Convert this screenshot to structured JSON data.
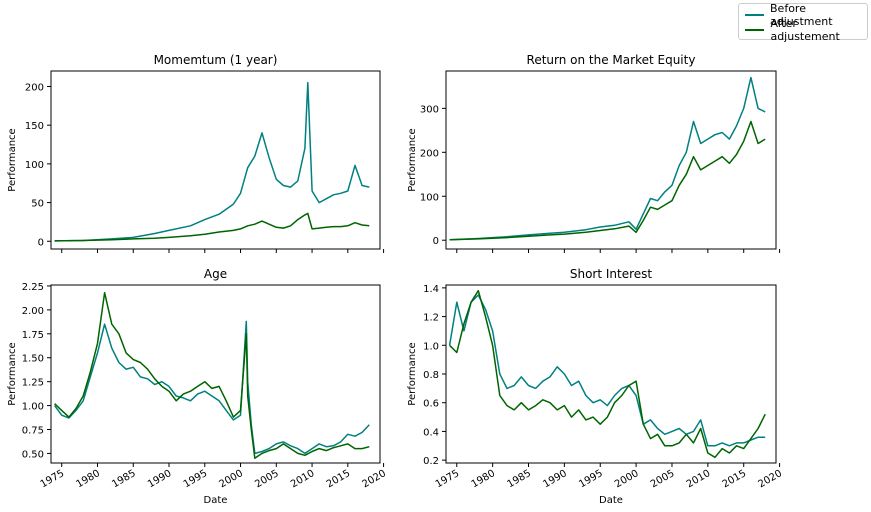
{
  "legend": {
    "before": "Before adjustment",
    "after": "After adjustement"
  },
  "colors": {
    "before": "#008080",
    "after": "#006400"
  },
  "chart_data": [
    {
      "type": "line",
      "title": "Momemtum (1 year)",
      "ylabel": "Performance",
      "xlabel": "",
      "xlim": [
        1973.5,
        2019.5
      ],
      "ylim": [
        -10,
        220
      ],
      "yticks": [
        0,
        50,
        100,
        150,
        200
      ],
      "ytick_labels": [
        "0",
        "50",
        "100",
        "150",
        "200"
      ],
      "xticks": [],
      "series": [
        {
          "name": "Before adjustment",
          "x": [
            1974,
            1978,
            1982,
            1985,
            1988,
            1990,
            1993,
            1995,
            1997,
            1999,
            2000,
            2001,
            2002,
            2003,
            2004,
            2005,
            2006,
            2007,
            2008,
            2009,
            2009.4,
            2010,
            2011,
            2012,
            2013,
            2014,
            2015,
            2016,
            2017,
            2018
          ],
          "y": [
            0.5,
            1,
            3,
            5,
            10,
            14,
            20,
            28,
            35,
            48,
            62,
            95,
            110,
            140,
            108,
            80,
            72,
            70,
            78,
            120,
            205,
            65,
            50,
            55,
            60,
            62,
            65,
            98,
            72,
            70
          ]
        },
        {
          "name": "After adjustement",
          "x": [
            1974,
            1978,
            1982,
            1985,
            1988,
            1990,
            1993,
            1995,
            1997,
            1999,
            2000,
            2001,
            2002,
            2003,
            2004,
            2005,
            2006,
            2007,
            2008,
            2009,
            2009.4,
            2010,
            2011,
            2012,
            2013,
            2014,
            2015,
            2016,
            2017,
            2018
          ],
          "y": [
            0.5,
            1,
            2,
            3,
            4,
            5,
            7,
            9,
            12,
            14,
            16,
            20,
            22,
            26,
            22,
            18,
            17,
            20,
            28,
            34,
            36,
            16,
            17,
            18,
            19,
            19,
            20,
            24,
            21,
            20
          ]
        }
      ]
    },
    {
      "type": "line",
      "title": "Return on the Market Equity",
      "ylabel": "Performance",
      "xlabel": "",
      "xlim": [
        1973.5,
        2019.5
      ],
      "ylim": [
        -20,
        385
      ],
      "yticks": [
        0,
        100,
        200,
        300
      ],
      "ytick_labels": [
        "0",
        "100",
        "200",
        "300"
      ],
      "xticks": [],
      "series": [
        {
          "name": "Before adjustment",
          "x": [
            1974,
            1978,
            1982,
            1985,
            1988,
            1990,
            1993,
            1995,
            1997,
            1999,
            2000,
            2001,
            2002,
            2003,
            2004,
            2005,
            2006,
            2007,
            2008,
            2009,
            2010,
            2011,
            2012,
            2013,
            2014,
            2015,
            2016,
            2017,
            2018
          ],
          "y": [
            1,
            4,
            8,
            12,
            16,
            18,
            24,
            30,
            34,
            42,
            25,
            60,
            95,
            90,
            110,
            125,
            170,
            200,
            270,
            220,
            230,
            240,
            245,
            230,
            260,
            300,
            370,
            300,
            292
          ]
        },
        {
          "name": "After adjustement",
          "x": [
            1974,
            1978,
            1982,
            1985,
            1988,
            1990,
            1993,
            1995,
            1997,
            1999,
            2000,
            2001,
            2002,
            2003,
            2004,
            2005,
            2006,
            2007,
            2008,
            2009,
            2010,
            2011,
            2012,
            2013,
            2014,
            2015,
            2016,
            2017,
            2018
          ],
          "y": [
            1,
            3,
            6,
            9,
            12,
            14,
            18,
            22,
            26,
            32,
            18,
            45,
            75,
            70,
            80,
            90,
            125,
            150,
            190,
            160,
            170,
            180,
            190,
            175,
            195,
            225,
            270,
            220,
            230
          ]
        }
      ]
    },
    {
      "type": "line",
      "title": "Age",
      "ylabel": "Performance",
      "xlabel": "Date",
      "xlim": [
        1973.5,
        2019.5
      ],
      "ylim": [
        0.4,
        2.26
      ],
      "yticks": [
        0.5,
        0.75,
        1.0,
        1.25,
        1.5,
        1.75,
        2.0,
        2.25
      ],
      "ytick_labels": [
        "0.50",
        "0.75",
        "1.00",
        "1.25",
        "1.50",
        "1.75",
        "2.00",
        "2.25"
      ],
      "xticks": [
        1975,
        1980,
        1985,
        1990,
        1995,
        2000,
        2005,
        2010,
        2015,
        2020
      ],
      "xtick_labels": [
        "1975",
        "1980",
        "1985",
        "1990",
        "1995",
        "2000",
        "2005",
        "2010",
        "2015",
        "2020"
      ],
      "series": [
        {
          "name": "Before adjustment",
          "x": [
            1974,
            1975,
            1976,
            1977,
            1978,
            1979,
            1980,
            1981,
            1982,
            1983,
            1984,
            1985,
            1986,
            1987,
            1988,
            1989,
            1990,
            1991,
            1992,
            1993,
            1994,
            1995,
            1996,
            1997,
            1998,
            1999,
            2000,
            2000.8,
            2001,
            2001.5,
            2002,
            2003,
            2004,
            2005,
            2006,
            2007,
            2008,
            2009,
            2010,
            2011,
            2012,
            2013,
            2014,
            2015,
            2016,
            2017,
            2018
          ],
          "y": [
            1.0,
            0.9,
            0.87,
            0.95,
            1.05,
            1.3,
            1.55,
            1.85,
            1.6,
            1.45,
            1.38,
            1.4,
            1.3,
            1.28,
            1.22,
            1.25,
            1.2,
            1.1,
            1.08,
            1.05,
            1.12,
            1.15,
            1.1,
            1.05,
            0.95,
            0.85,
            0.9,
            1.88,
            1.25,
            0.8,
            0.5,
            0.52,
            0.55,
            0.6,
            0.62,
            0.58,
            0.55,
            0.5,
            0.55,
            0.6,
            0.57,
            0.58,
            0.62,
            0.7,
            0.68,
            0.72,
            0.8
          ]
        },
        {
          "name": "After adjustement",
          "x": [
            1974,
            1975,
            1976,
            1977,
            1978,
            1979,
            1980,
            1981,
            1982,
            1983,
            1984,
            1985,
            1986,
            1987,
            1988,
            1989,
            1990,
            1991,
            1992,
            1993,
            1994,
            1995,
            1996,
            1997,
            1998,
            1999,
            2000,
            2000.8,
            2001,
            2001.5,
            2002,
            2003,
            2004,
            2005,
            2006,
            2007,
            2008,
            2009,
            2010,
            2011,
            2012,
            2013,
            2014,
            2015,
            2016,
            2017,
            2018
          ],
          "y": [
            1.02,
            0.95,
            0.88,
            0.97,
            1.1,
            1.35,
            1.65,
            2.18,
            1.85,
            1.75,
            1.55,
            1.48,
            1.45,
            1.38,
            1.28,
            1.2,
            1.15,
            1.05,
            1.12,
            1.15,
            1.2,
            1.25,
            1.18,
            1.2,
            1.05,
            0.88,
            0.95,
            1.75,
            1.1,
            0.75,
            0.45,
            0.5,
            0.53,
            0.55,
            0.6,
            0.55,
            0.5,
            0.48,
            0.52,
            0.55,
            0.53,
            0.56,
            0.58,
            0.6,
            0.55,
            0.55,
            0.57
          ]
        }
      ]
    },
    {
      "type": "line",
      "title": "Short Interest",
      "ylabel": "Performance",
      "xlabel": "Date",
      "xlim": [
        1973.5,
        2019.5
      ],
      "ylim": [
        0.18,
        1.42
      ],
      "yticks": [
        0.2,
        0.4,
        0.6,
        0.8,
        1.0,
        1.2,
        1.4
      ],
      "ytick_labels": [
        "0.2",
        "0.4",
        "0.6",
        "0.8",
        "1.0",
        "1.2",
        "1.4"
      ],
      "xticks": [
        1975,
        1980,
        1985,
        1990,
        1995,
        2000,
        2005,
        2010,
        2015,
        2020
      ],
      "xtick_labels": [
        "1975",
        "1980",
        "1985",
        "1990",
        "1995",
        "2000",
        "2005",
        "2010",
        "2015",
        "2020"
      ],
      "series": [
        {
          "name": "Before adjustment",
          "x": [
            1974,
            1975,
            1976,
            1977,
            1978,
            1979,
            1980,
            1981,
            1982,
            1983,
            1984,
            1985,
            1986,
            1987,
            1988,
            1989,
            1990,
            1991,
            1992,
            1993,
            1994,
            1995,
            1996,
            1997,
            1998,
            1999,
            2000,
            2001,
            2002,
            2003,
            2004,
            2005,
            2006,
            2007,
            2008,
            2009,
            2010,
            2011,
            2012,
            2013,
            2014,
            2015,
            2016,
            2017,
            2018
          ],
          "y": [
            1.0,
            1.3,
            1.1,
            1.3,
            1.35,
            1.25,
            1.1,
            0.8,
            0.7,
            0.72,
            0.78,
            0.72,
            0.7,
            0.75,
            0.78,
            0.85,
            0.8,
            0.72,
            0.75,
            0.65,
            0.6,
            0.62,
            0.58,
            0.65,
            0.7,
            0.72,
            0.65,
            0.45,
            0.48,
            0.42,
            0.38,
            0.4,
            0.42,
            0.38,
            0.4,
            0.48,
            0.3,
            0.3,
            0.32,
            0.3,
            0.32,
            0.32,
            0.34,
            0.36,
            0.36
          ]
        },
        {
          "name": "After adjustement",
          "x": [
            1974,
            1975,
            1976,
            1977,
            1978,
            1979,
            1980,
            1981,
            1982,
            1983,
            1984,
            1985,
            1986,
            1987,
            1988,
            1989,
            1990,
            1991,
            1992,
            1993,
            1994,
            1995,
            1996,
            1997,
            1998,
            1999,
            2000,
            2001,
            2002,
            2003,
            2004,
            2005,
            2006,
            2007,
            2008,
            2009,
            2010,
            2011,
            2012,
            2013,
            2014,
            2015,
            2016,
            2017,
            2018
          ],
          "y": [
            1.0,
            0.95,
            1.15,
            1.3,
            1.38,
            1.2,
            1.0,
            0.65,
            0.58,
            0.55,
            0.6,
            0.55,
            0.58,
            0.62,
            0.6,
            0.55,
            0.58,
            0.5,
            0.55,
            0.48,
            0.5,
            0.45,
            0.5,
            0.6,
            0.65,
            0.72,
            0.75,
            0.45,
            0.35,
            0.38,
            0.3,
            0.3,
            0.32,
            0.38,
            0.32,
            0.42,
            0.25,
            0.22,
            0.28,
            0.25,
            0.3,
            0.28,
            0.35,
            0.42,
            0.52
          ]
        }
      ]
    }
  ]
}
